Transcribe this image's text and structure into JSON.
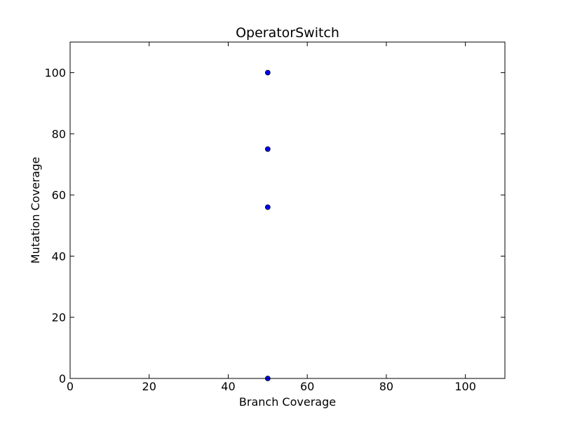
{
  "chart_data": {
    "type": "scatter",
    "title": "OperatorSwitch",
    "xlabel": "Branch Coverage",
    "ylabel": "Mutation Coverage",
    "xlim": [
      0,
      110
    ],
    "ylim": [
      0,
      110
    ],
    "xticks": [
      0,
      20,
      40,
      60,
      80,
      100
    ],
    "yticks": [
      0,
      20,
      40,
      60,
      80,
      100
    ],
    "xtick_labels": [
      "0",
      "20",
      "40",
      "60",
      "80",
      "100"
    ],
    "ytick_labels": [
      "0",
      "20",
      "40",
      "60",
      "80",
      "100"
    ],
    "grid": false,
    "marker_color": "#0000ff",
    "marker_edge_color": "#000000",
    "points": [
      {
        "x": 50,
        "y": 100
      },
      {
        "x": 50,
        "y": 75
      },
      {
        "x": 50,
        "y": 56
      },
      {
        "x": 50,
        "y": 0
      }
    ]
  }
}
